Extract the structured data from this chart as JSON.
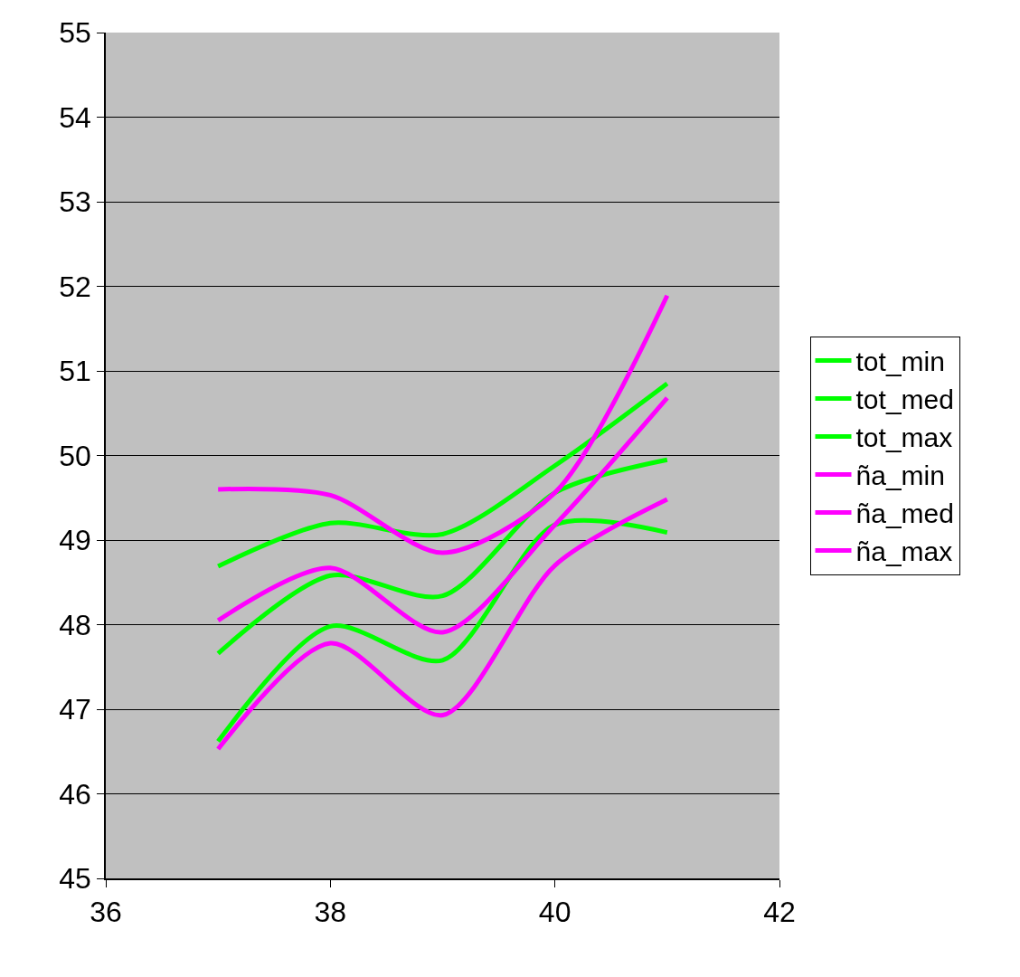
{
  "chart_data": {
    "type": "line",
    "x": [
      37,
      38,
      39,
      40,
      41
    ],
    "series": [
      {
        "name": "tot_min",
        "color": "#00ff00",
        "values": [
          46.62,
          47.98,
          47.58,
          49.18,
          49.09
        ]
      },
      {
        "name": "tot_med",
        "color": "#00ff00",
        "values": [
          47.66,
          48.58,
          48.34,
          49.56,
          49.95
        ]
      },
      {
        "name": "tot_max",
        "color": "#00ff00",
        "values": [
          48.69,
          49.2,
          49.07,
          49.88,
          50.85
        ]
      },
      {
        "name": "ña_min",
        "color": "#ff00ff",
        "values": [
          46.53,
          47.78,
          46.93,
          48.7,
          49.48
        ]
      },
      {
        "name": "ña_med",
        "color": "#ff00ff",
        "values": [
          48.05,
          48.67,
          47.91,
          49.18,
          50.68
        ]
      },
      {
        "name": "ña_max",
        "color": "#ff00ff",
        "values": [
          49.6,
          49.53,
          48.85,
          49.56,
          51.89
        ]
      }
    ],
    "xlim": [
      36,
      42
    ],
    "xticks": [
      36,
      38,
      40,
      42
    ],
    "ylim": [
      45,
      55
    ],
    "yticks": [
      45,
      46,
      47,
      48,
      49,
      50,
      51,
      52,
      53,
      54,
      55
    ],
    "grid": "y",
    "legend": "right",
    "line_style": "solid"
  }
}
